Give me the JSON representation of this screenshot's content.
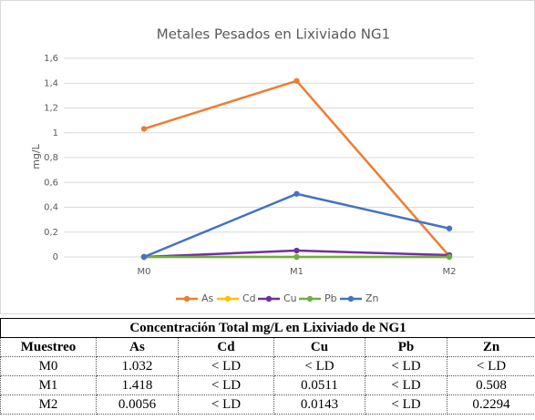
{
  "chart_data": {
    "type": "line",
    "title": "Metales Pesados en Lixiviado NG1",
    "y_label": "mg/L",
    "categories": [
      "M0",
      "M1",
      "M2"
    ],
    "series": [
      {
        "name": "As",
        "color": "#ed7d31",
        "values": [
          1.032,
          1.418,
          0.0056
        ]
      },
      {
        "name": "Cd",
        "color": "#ffc000",
        "values": [
          0,
          0,
          0
        ]
      },
      {
        "name": "Cu",
        "color": "#7030a0",
        "values": [
          0,
          0.0511,
          0.0143
        ]
      },
      {
        "name": "Pb",
        "color": "#70ad47",
        "values": [
          0,
          0,
          0
        ]
      },
      {
        "name": "Zn",
        "color": "#4472c4",
        "values": [
          0,
          0.508,
          0.2294
        ]
      }
    ],
    "ylim": [
      0,
      1.6
    ],
    "yticks": [
      0,
      {
        "value": 0.2,
        "label": "0,2"
      },
      {
        "value": 0.4,
        "label": "0,4"
      },
      {
        "value": 0.6,
        "label": "0,6"
      },
      {
        "value": 0.8,
        "label": "0,8"
      },
      1,
      {
        "value": 1.2,
        "label": "1,2"
      },
      {
        "value": 1.4,
        "label": "1,4"
      },
      {
        "value": 1.6,
        "label": "1,6"
      }
    ],
    "grid": true,
    "legend": "bottom"
  },
  "table": {
    "title": "Concentración Total mg/L en Lixiviado de NG1",
    "header": [
      "Muestreo",
      "As",
      "Cd",
      "Cu",
      "Pb",
      "Zn"
    ],
    "rows": [
      [
        "M0",
        "1.032",
        "< LD",
        "< LD",
        "< LD",
        "< LD"
      ],
      [
        "M1",
        "1.418",
        "< LD",
        "0.0511",
        "< LD",
        "0.508"
      ],
      [
        "M2",
        "0.0056",
        "< LD",
        "0.0143",
        "< LD",
        "0.2294"
      ]
    ]
  }
}
